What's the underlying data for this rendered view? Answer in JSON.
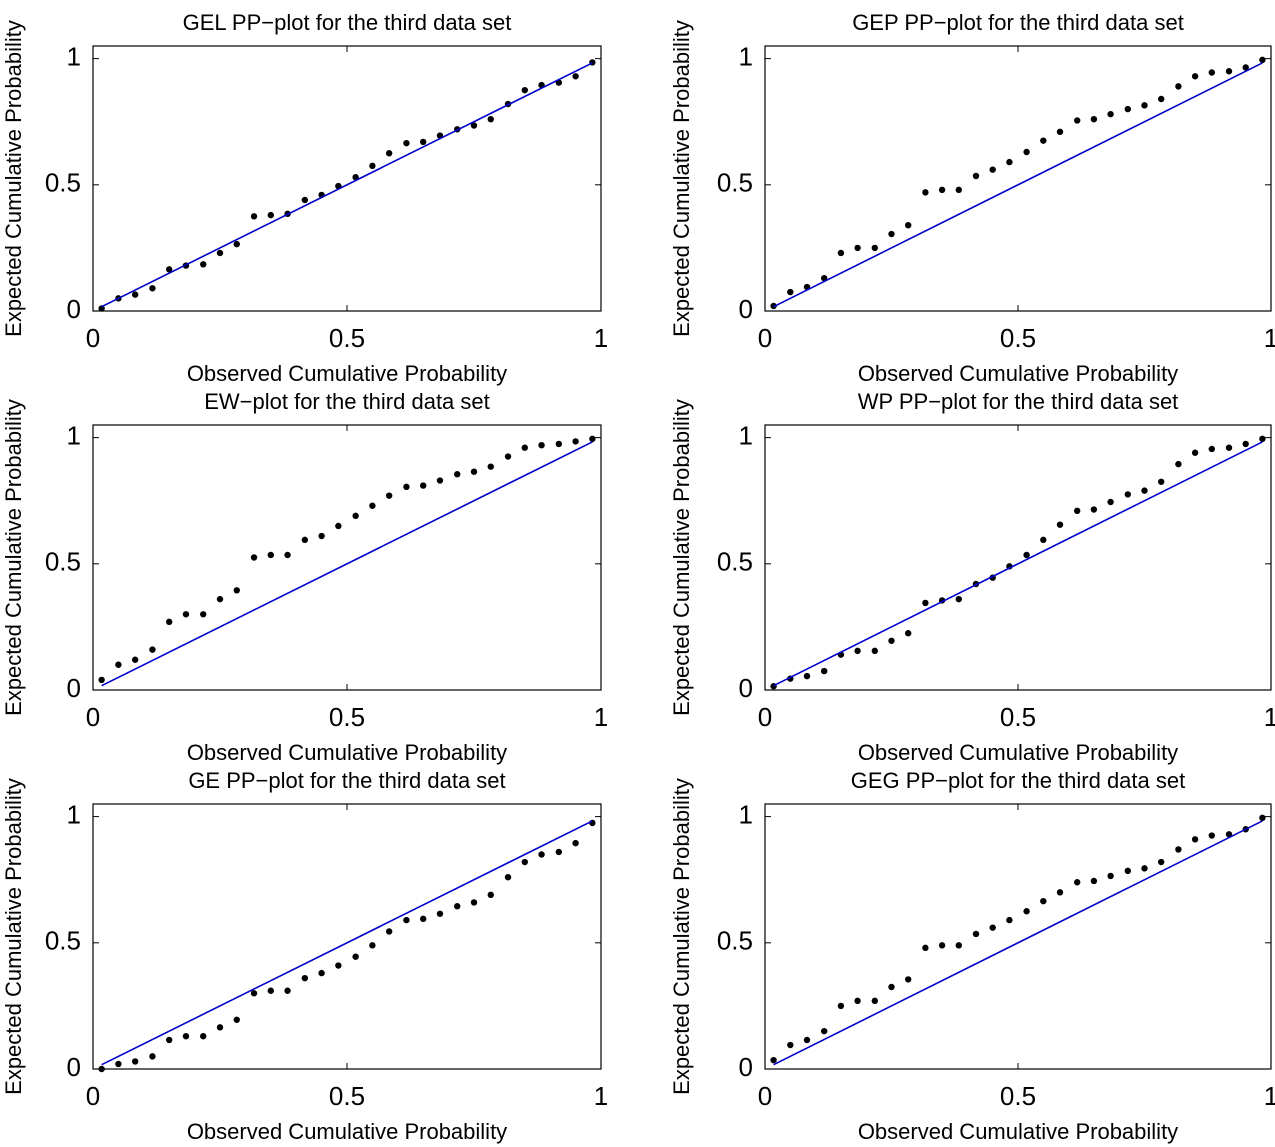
{
  "chart_data": [
    {
      "type": "scatter",
      "title": "GEL PP−plot for the third data set",
      "x_label": "Observed Cumulative Probability",
      "y_label": "Expected Cumulative Probability",
      "xlim": [
        0,
        1
      ],
      "ylim": [
        0,
        1.05
      ],
      "xticks": [
        0,
        0.5,
        1
      ],
      "yticks": [
        0,
        0.5,
        1
      ],
      "series": [
        {
          "style": "dots",
          "color": "#000000",
          "x": [
            0.017,
            0.05,
            0.083,
            0.117,
            0.15,
            0.183,
            0.217,
            0.25,
            0.283,
            0.317,
            0.35,
            0.383,
            0.417,
            0.45,
            0.483,
            0.517,
            0.55,
            0.583,
            0.617,
            0.65,
            0.683,
            0.717,
            0.75,
            0.783,
            0.817,
            0.85,
            0.883,
            0.917,
            0.95,
            0.983
          ],
          "values": [
            0.01,
            0.05,
            0.065,
            0.09,
            0.165,
            0.18,
            0.185,
            0.23,
            0.265,
            0.375,
            0.38,
            0.385,
            0.44,
            0.46,
            0.495,
            0.53,
            0.575,
            0.625,
            0.665,
            0.67,
            0.695,
            0.72,
            0.735,
            0.76,
            0.82,
            0.875,
            0.895,
            0.905,
            0.93,
            0.985
          ]
        },
        {
          "style": "line",
          "color": "#0000cc",
          "x": [
            0.017,
            0.983
          ],
          "values": [
            0.017,
            0.983
          ]
        }
      ]
    },
    {
      "type": "scatter",
      "title": "GEP PP−plot for the third data set",
      "x_label": "Observed Cumulative Probability",
      "y_label": "Expected Cumulative Probability",
      "xlim": [
        0,
        1
      ],
      "ylim": [
        0,
        1.05
      ],
      "xticks": [
        0,
        0.5,
        1
      ],
      "yticks": [
        0,
        0.5,
        1
      ],
      "series": [
        {
          "style": "dots",
          "color": "#000000",
          "x": [
            0.017,
            0.05,
            0.083,
            0.117,
            0.15,
            0.183,
            0.217,
            0.25,
            0.283,
            0.317,
            0.35,
            0.383,
            0.417,
            0.45,
            0.483,
            0.517,
            0.55,
            0.583,
            0.617,
            0.65,
            0.683,
            0.717,
            0.75,
            0.783,
            0.817,
            0.85,
            0.883,
            0.917,
            0.95,
            0.983
          ],
          "values": [
            0.02,
            0.075,
            0.095,
            0.13,
            0.23,
            0.25,
            0.25,
            0.305,
            0.34,
            0.47,
            0.48,
            0.48,
            0.535,
            0.56,
            0.59,
            0.63,
            0.675,
            0.71,
            0.755,
            0.76,
            0.78,
            0.8,
            0.815,
            0.84,
            0.89,
            0.93,
            0.945,
            0.95,
            0.965,
            0.995
          ]
        },
        {
          "style": "line",
          "color": "#0000cc",
          "x": [
            0.017,
            0.983
          ],
          "values": [
            0.017,
            0.983
          ]
        }
      ]
    },
    {
      "type": "scatter",
      "title": "EW−plot for the third data set",
      "x_label": "Observed Cumulative Probability",
      "y_label": "Expected Cumulative Probability",
      "xlim": [
        0,
        1
      ],
      "ylim": [
        0,
        1.05
      ],
      "xticks": [
        0,
        0.5,
        1
      ],
      "yticks": [
        0,
        0.5,
        1
      ],
      "series": [
        {
          "style": "dots",
          "color": "#000000",
          "x": [
            0.017,
            0.05,
            0.083,
            0.117,
            0.15,
            0.183,
            0.217,
            0.25,
            0.283,
            0.317,
            0.35,
            0.383,
            0.417,
            0.45,
            0.483,
            0.517,
            0.55,
            0.583,
            0.617,
            0.65,
            0.683,
            0.717,
            0.75,
            0.783,
            0.817,
            0.85,
            0.883,
            0.917,
            0.95,
            0.983
          ],
          "values": [
            0.04,
            0.1,
            0.12,
            0.16,
            0.27,
            0.3,
            0.3,
            0.36,
            0.395,
            0.525,
            0.535,
            0.535,
            0.595,
            0.61,
            0.65,
            0.69,
            0.73,
            0.77,
            0.805,
            0.81,
            0.83,
            0.855,
            0.865,
            0.885,
            0.925,
            0.96,
            0.97,
            0.975,
            0.985,
            0.995
          ]
        },
        {
          "style": "line",
          "color": "#0000cc",
          "x": [
            0.017,
            0.983
          ],
          "values": [
            0.017,
            0.983
          ]
        }
      ]
    },
    {
      "type": "scatter",
      "title": "WP PP−plot for the third data set",
      "x_label": "Observed Cumulative Probability",
      "y_label": "Expected Cumulative Probability",
      "xlim": [
        0,
        1
      ],
      "ylim": [
        0,
        1.05
      ],
      "xticks": [
        0,
        0.5,
        1
      ],
      "yticks": [
        0,
        0.5,
        1
      ],
      "series": [
        {
          "style": "dots",
          "color": "#000000",
          "x": [
            0.017,
            0.05,
            0.083,
            0.117,
            0.15,
            0.183,
            0.217,
            0.25,
            0.283,
            0.317,
            0.35,
            0.383,
            0.417,
            0.45,
            0.483,
            0.517,
            0.55,
            0.583,
            0.617,
            0.65,
            0.683,
            0.717,
            0.75,
            0.783,
            0.817,
            0.85,
            0.883,
            0.917,
            0.95,
            0.983
          ],
          "values": [
            0.015,
            0.045,
            0.055,
            0.075,
            0.14,
            0.155,
            0.155,
            0.195,
            0.225,
            0.345,
            0.355,
            0.36,
            0.42,
            0.445,
            0.49,
            0.535,
            0.595,
            0.655,
            0.71,
            0.715,
            0.745,
            0.775,
            0.79,
            0.825,
            0.895,
            0.94,
            0.955,
            0.96,
            0.975,
            0.995
          ]
        },
        {
          "style": "line",
          "color": "#0000cc",
          "x": [
            0.017,
            0.983
          ],
          "values": [
            0.017,
            0.983
          ]
        }
      ]
    },
    {
      "type": "scatter",
      "title": "GE PP−plot for the third data set",
      "x_label": "Observed Cumulative Probability",
      "y_label": "Expected Cumulative Probability",
      "xlim": [
        0,
        1
      ],
      "ylim": [
        0,
        1.05
      ],
      "xticks": [
        0,
        0.5,
        1
      ],
      "yticks": [
        0,
        0.5,
        1
      ],
      "series": [
        {
          "style": "dots",
          "color": "#000000",
          "x": [
            0.017,
            0.05,
            0.083,
            0.117,
            0.15,
            0.183,
            0.217,
            0.25,
            0.283,
            0.317,
            0.35,
            0.383,
            0.417,
            0.45,
            0.483,
            0.517,
            0.55,
            0.583,
            0.617,
            0.65,
            0.683,
            0.717,
            0.75,
            0.783,
            0.817,
            0.85,
            0.883,
            0.917,
            0.95,
            0.983
          ],
          "values": [
            0,
            0.02,
            0.03,
            0.05,
            0.115,
            0.13,
            0.13,
            0.165,
            0.195,
            0.3,
            0.31,
            0.31,
            0.36,
            0.38,
            0.41,
            0.445,
            0.49,
            0.545,
            0.59,
            0.595,
            0.615,
            0.645,
            0.66,
            0.69,
            0.76,
            0.82,
            0.85,
            0.86,
            0.895,
            0.975
          ]
        },
        {
          "style": "line",
          "color": "#0000cc",
          "x": [
            0.017,
            0.983
          ],
          "values": [
            0.017,
            0.983
          ]
        }
      ]
    },
    {
      "type": "scatter",
      "title": "GEG PP−plot for the third data set",
      "x_label": "Observed Cumulative Probability",
      "y_label": "Expected Cumulative Probability",
      "xlim": [
        0,
        1
      ],
      "ylim": [
        0,
        1.05
      ],
      "xticks": [
        0,
        0.5,
        1
      ],
      "yticks": [
        0,
        0.5,
        1
      ],
      "series": [
        {
          "style": "dots",
          "color": "#000000",
          "x": [
            0.017,
            0.05,
            0.083,
            0.117,
            0.15,
            0.183,
            0.217,
            0.25,
            0.283,
            0.317,
            0.35,
            0.383,
            0.417,
            0.45,
            0.483,
            0.517,
            0.55,
            0.583,
            0.617,
            0.65,
            0.683,
            0.717,
            0.75,
            0.783,
            0.817,
            0.85,
            0.883,
            0.917,
            0.95,
            0.983
          ],
          "values": [
            0.035,
            0.095,
            0.115,
            0.15,
            0.25,
            0.27,
            0.27,
            0.325,
            0.355,
            0.48,
            0.49,
            0.49,
            0.535,
            0.56,
            0.59,
            0.625,
            0.665,
            0.7,
            0.74,
            0.745,
            0.765,
            0.785,
            0.795,
            0.82,
            0.87,
            0.91,
            0.925,
            0.93,
            0.95,
            0.995
          ]
        },
        {
          "style": "line",
          "color": "#0000cc",
          "x": [
            0.017,
            0.983
          ],
          "values": [
            0.017,
            0.983
          ]
        }
      ]
    }
  ]
}
